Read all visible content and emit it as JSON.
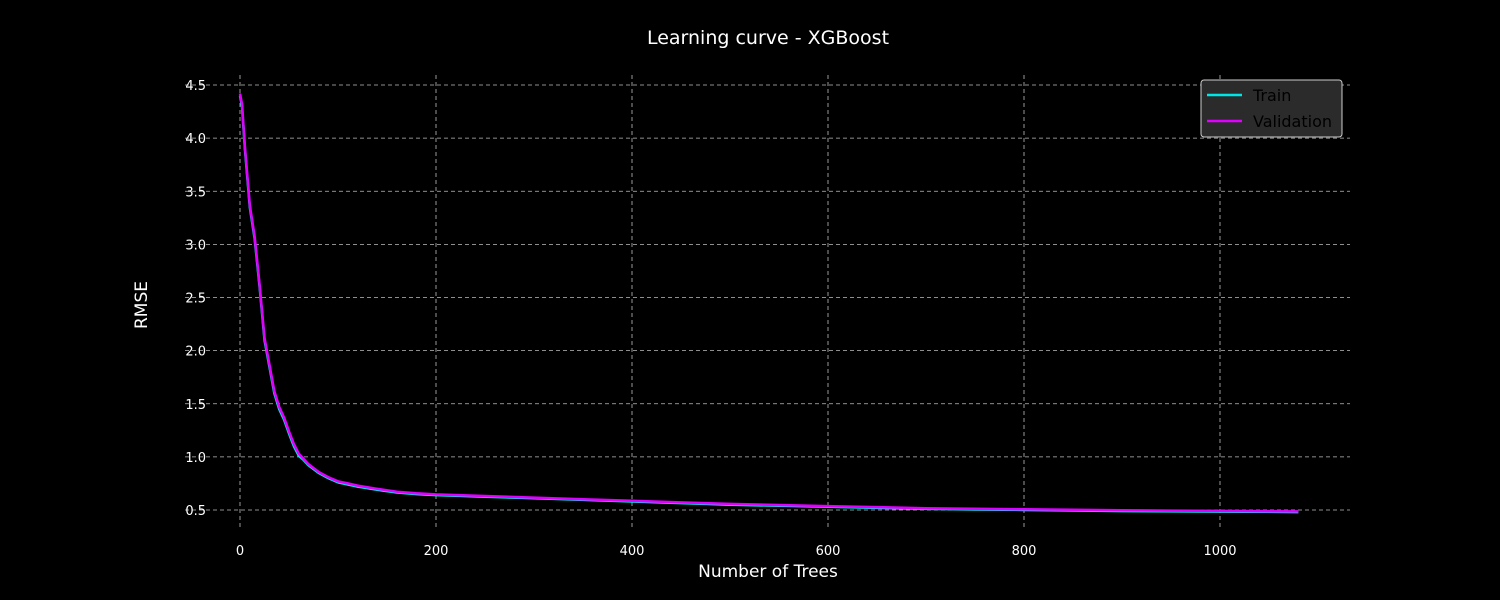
{
  "chart_data": {
    "type": "line",
    "title": "Learning curve - XGBoost",
    "xlabel": "Number of Trees",
    "ylabel": "RMSE",
    "xlim": [
      0,
      1080
    ],
    "ylim": [
      0.5,
      4.5
    ],
    "xticks": [
      0,
      200,
      400,
      600,
      800,
      1000
    ],
    "yticks": [
      0.5,
      1.0,
      1.5,
      2.0,
      2.5,
      3.0,
      3.5,
      4.0,
      4.5
    ],
    "ytick_labels": [
      "0.5",
      "1.0",
      "1.5",
      "2.0",
      "2.5",
      "3.0",
      "3.5",
      "4.0",
      "4.5"
    ],
    "grid": true,
    "legend_position": "top-right",
    "series": [
      {
        "name": "Train",
        "color": "#00e5e5",
        "x": [
          0,
          2,
          5,
          10,
          15,
          20,
          25,
          30,
          35,
          40,
          45,
          50,
          55,
          60,
          65,
          70,
          80,
          90,
          100,
          110,
          120,
          140,
          160,
          180,
          200,
          250,
          300,
          350,
          400,
          450,
          500,
          550,
          600,
          650,
          700,
          750,
          800,
          850,
          900,
          950,
          1000,
          1050,
          1080
        ],
        "y": [
          4.4,
          4.3,
          3.9,
          3.35,
          3.05,
          2.6,
          2.1,
          1.85,
          1.6,
          1.45,
          1.35,
          1.22,
          1.1,
          1.01,
          0.97,
          0.92,
          0.85,
          0.8,
          0.76,
          0.74,
          0.72,
          0.69,
          0.665,
          0.65,
          0.64,
          0.625,
          0.61,
          0.595,
          0.58,
          0.565,
          0.55,
          0.54,
          0.53,
          0.52,
          0.51,
          0.505,
          0.5,
          0.495,
          0.49,
          0.487,
          0.485,
          0.482,
          0.48
        ]
      },
      {
        "name": "Validation",
        "color": "#e000ff",
        "x": [
          0,
          2,
          5,
          10,
          15,
          20,
          25,
          30,
          35,
          40,
          45,
          50,
          55,
          60,
          65,
          70,
          80,
          90,
          100,
          110,
          120,
          140,
          160,
          180,
          200,
          250,
          300,
          350,
          400,
          450,
          500,
          550,
          600,
          650,
          700,
          750,
          800,
          850,
          900,
          950,
          1000,
          1050,
          1080
        ],
        "y": [
          4.42,
          4.32,
          3.92,
          3.37,
          3.07,
          2.62,
          2.12,
          1.87,
          1.62,
          1.47,
          1.37,
          1.24,
          1.12,
          1.03,
          0.98,
          0.93,
          0.86,
          0.81,
          0.77,
          0.75,
          0.73,
          0.7,
          0.672,
          0.657,
          0.647,
          0.632,
          0.617,
          0.602,
          0.587,
          0.572,
          0.557,
          0.547,
          0.537,
          0.527,
          0.517,
          0.512,
          0.507,
          0.502,
          0.497,
          0.494,
          0.492,
          0.489,
          0.487
        ]
      }
    ]
  }
}
